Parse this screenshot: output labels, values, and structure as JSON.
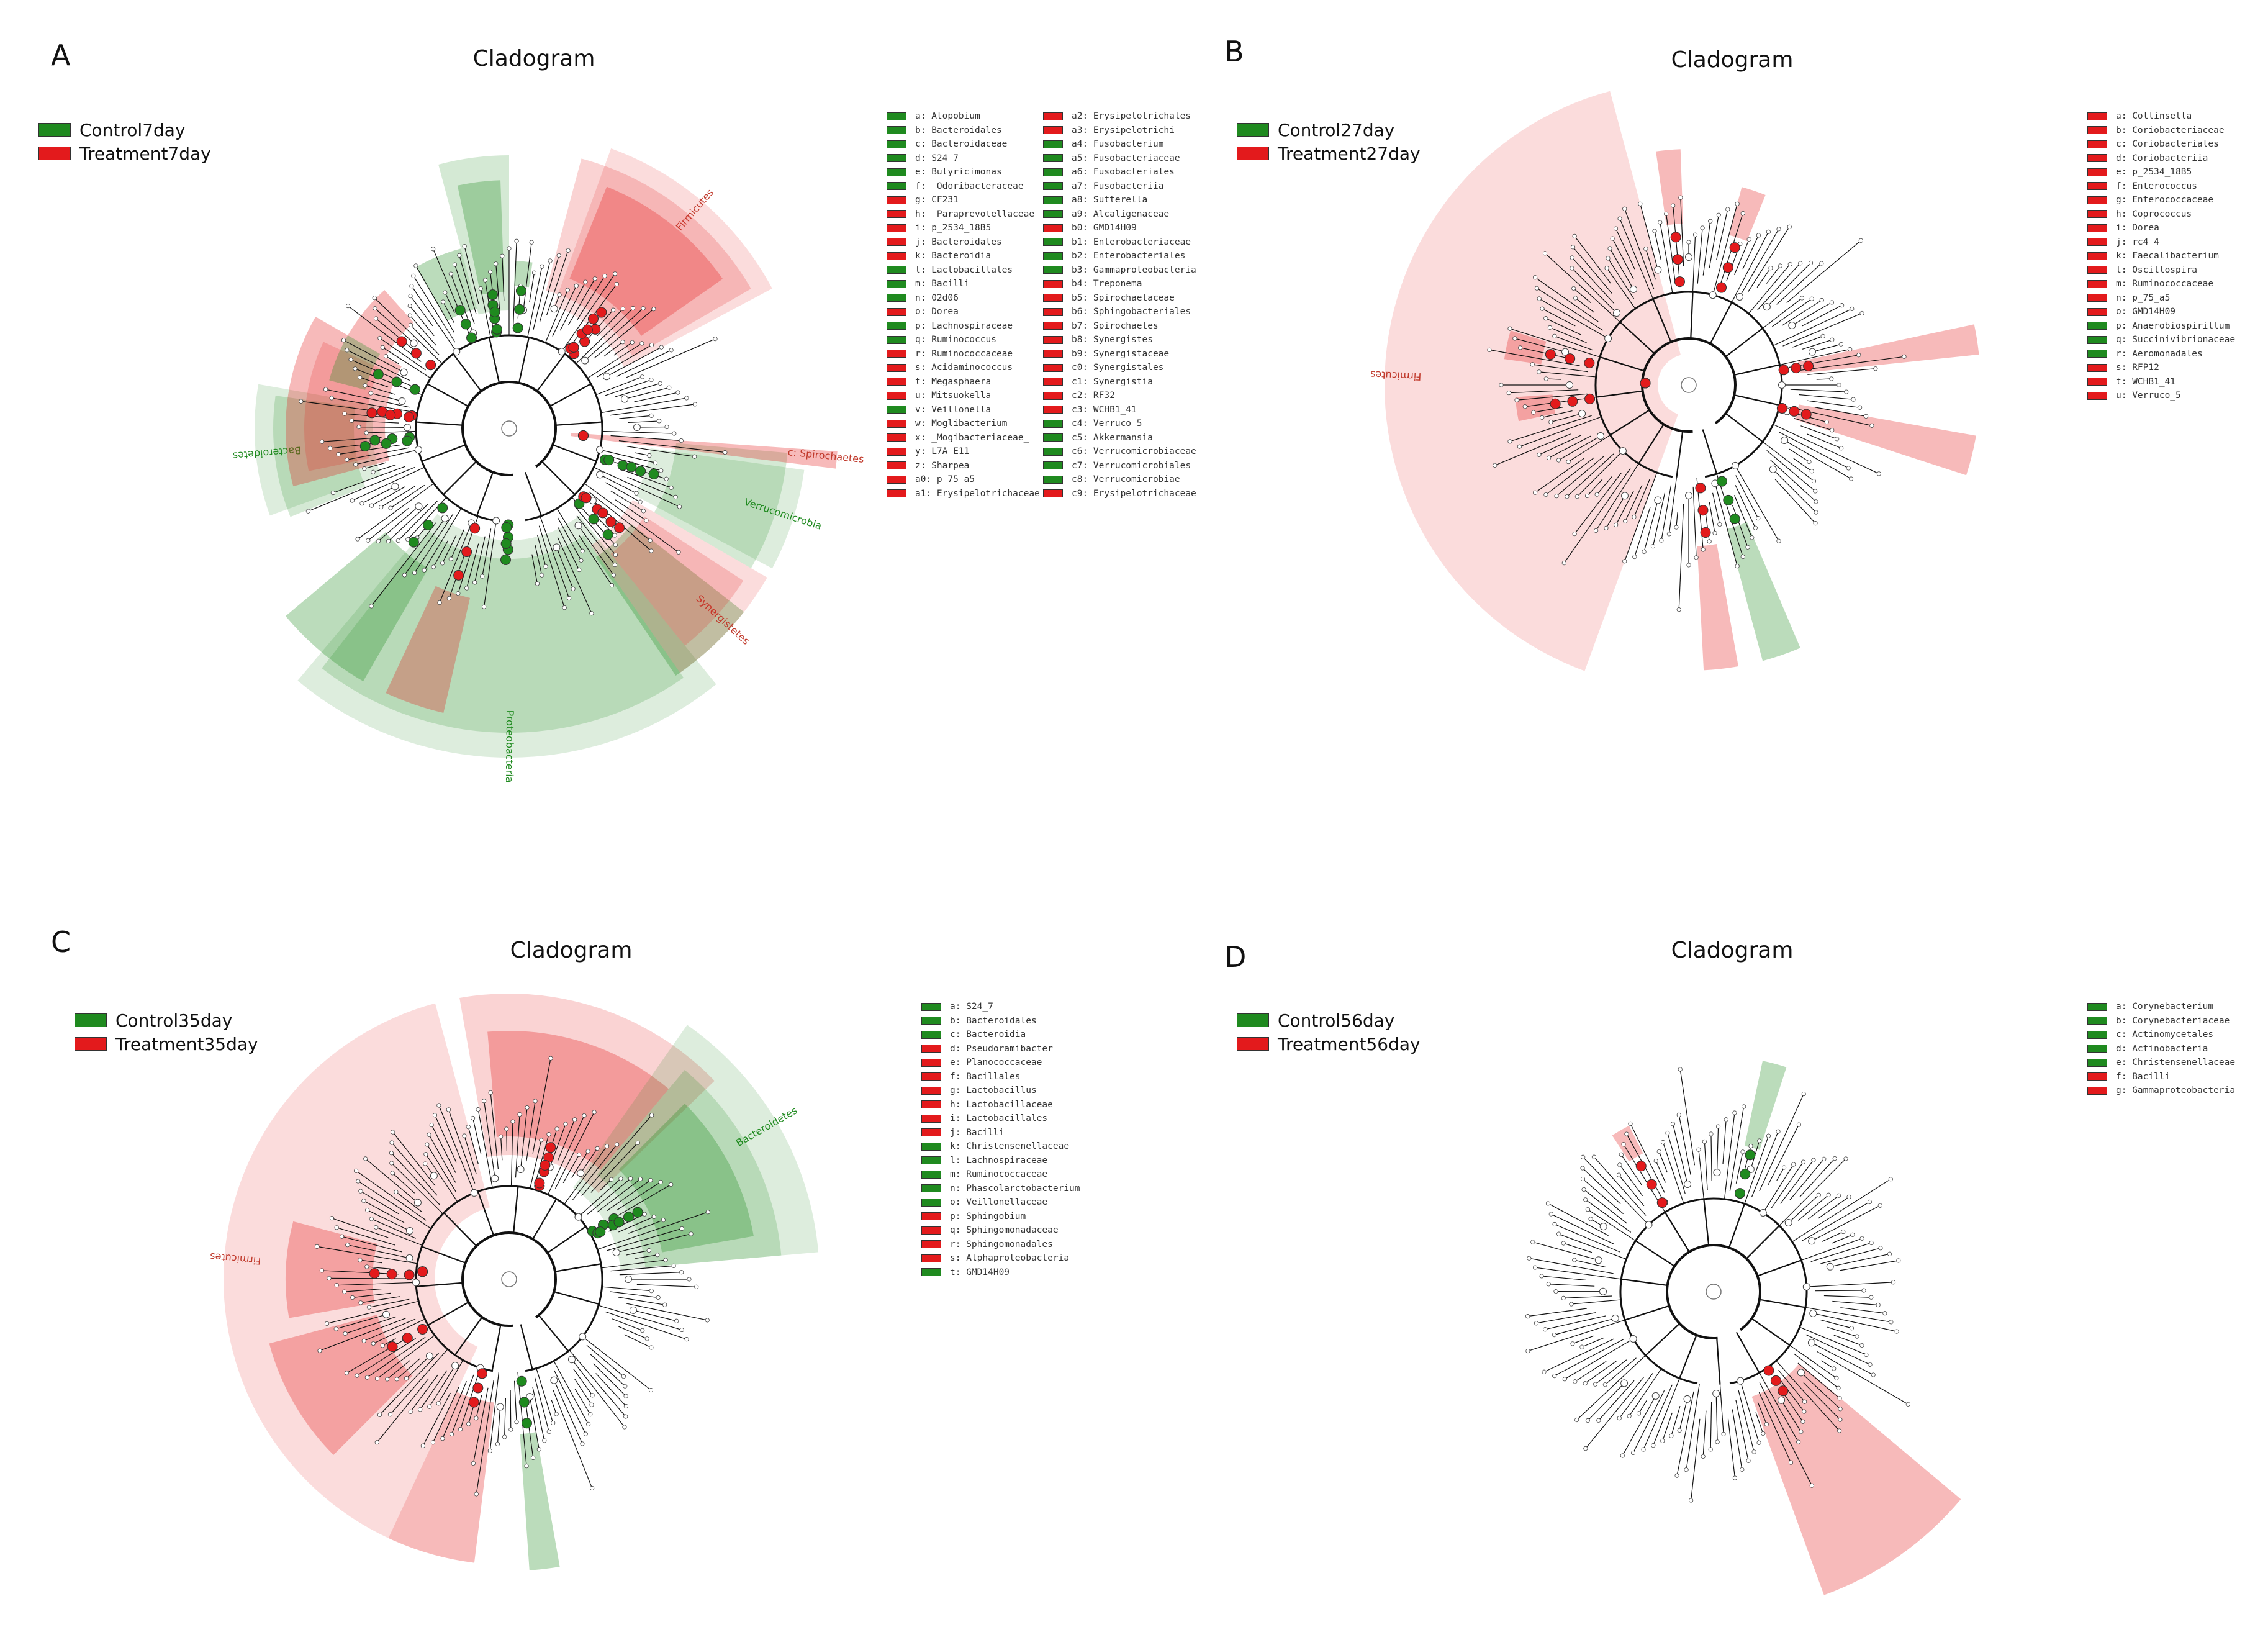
{
  "colors": {
    "control": "#1f8a1f",
    "treatment": "#e31a1c",
    "control_bg": "#a9d6a3",
    "treatment_bg": "#f4a5a5"
  },
  "panels": [
    {
      "letter": "A",
      "title": "Cladogram",
      "legend": [
        {
          "label": "Control7day",
          "group": "control"
        },
        {
          "label": "Treatment7day",
          "group": "treatment"
        }
      ],
      "sectors": [
        {
          "label": "Firmicutes",
          "group": "treatment"
        },
        {
          "label": "Proteobacteria",
          "group": "control"
        },
        {
          "label": "Bacteroidetes",
          "group": "control"
        },
        {
          "label": "Synergistetes",
          "group": "treatment"
        },
        {
          "label": "Verrucomicrobia",
          "group": "control"
        },
        {
          "label": "c: Spirochaetes",
          "group": "treatment"
        }
      ],
      "clades": [
        {
          "t": "a: Atopobium",
          "g": "control"
        },
        {
          "t": "b: Bacteroidales",
          "g": "control"
        },
        {
          "t": "c: Bacteroidaceae",
          "g": "control"
        },
        {
          "t": "d: S24_7",
          "g": "control"
        },
        {
          "t": "e: Butyricimonas",
          "g": "control"
        },
        {
          "t": "f: _Odoribacteraceae_",
          "g": "control"
        },
        {
          "t": "g: CF231",
          "g": "treatment"
        },
        {
          "t": "h: _Paraprevotellaceae_",
          "g": "treatment"
        },
        {
          "t": "i: p_2534_18B5",
          "g": "treatment"
        },
        {
          "t": "j: Bacteroidales",
          "g": "treatment"
        },
        {
          "t": "k: Bacteroidia",
          "g": "treatment"
        },
        {
          "t": "l: Lactobacillales",
          "g": "control"
        },
        {
          "t": "m: Bacilli",
          "g": "control"
        },
        {
          "t": "n: 02d06",
          "g": "control"
        },
        {
          "t": "o: Dorea",
          "g": "treatment"
        },
        {
          "t": "p: Lachnospiraceae",
          "g": "control"
        },
        {
          "t": "q: Ruminococcus",
          "g": "control"
        },
        {
          "t": "r: Ruminococcaceae",
          "g": "treatment"
        },
        {
          "t": "s: Acidaminococcus",
          "g": "treatment"
        },
        {
          "t": "t: Megasphaera",
          "g": "treatment"
        },
        {
          "t": "u: Mitsuokella",
          "g": "treatment"
        },
        {
          "t": "v: Veillonella",
          "g": "control"
        },
        {
          "t": "w: Moglibacterium",
          "g": "treatment"
        },
        {
          "t": "x: _Mogibacteriaceae_",
          "g": "treatment"
        },
        {
          "t": "y: L7A_E11",
          "g": "treatment"
        },
        {
          "t": "z: Sharpea",
          "g": "treatment"
        },
        {
          "t": "a0: p_75_a5",
          "g": "treatment"
        },
        {
          "t": "a1: Erysipelotrichaceae",
          "g": "treatment"
        },
        {
          "t": "a2: Erysipelotrichales",
          "g": "treatment"
        },
        {
          "t": "a3: Erysipelotrichi",
          "g": "treatment"
        },
        {
          "t": "a4: Fusobacterium",
          "g": "control"
        },
        {
          "t": "a5: Fusobacteriaceae",
          "g": "control"
        },
        {
          "t": "a6: Fusobacteriales",
          "g": "control"
        },
        {
          "t": "a7: Fusobacteriia",
          "g": "control"
        },
        {
          "t": "a8: Sutterella",
          "g": "control"
        },
        {
          "t": "a9: Alcaligenaceae",
          "g": "control"
        },
        {
          "t": "b0: GMD14H09",
          "g": "treatment"
        },
        {
          "t": "b1: Enterobacteriaceae",
          "g": "control"
        },
        {
          "t": "b2: Enterobacteriales",
          "g": "control"
        },
        {
          "t": "b3: Gammaproteobacteria",
          "g": "control"
        },
        {
          "t": "b4: Treponema",
          "g": "treatment"
        },
        {
          "t": "b5: Spirochaetaceae",
          "g": "treatment"
        },
        {
          "t": "b6: Sphingobacteriales",
          "g": "treatment"
        },
        {
          "t": "b7: Spirochaetes",
          "g": "treatment"
        },
        {
          "t": "b8: Synergistes",
          "g": "treatment"
        },
        {
          "t": "b9: Synergistaceae",
          "g": "treatment"
        },
        {
          "t": "c0: Synergistales",
          "g": "treatment"
        },
        {
          "t": "c1: Synergistia",
          "g": "treatment"
        },
        {
          "t": "c2: RF32",
          "g": "treatment"
        },
        {
          "t": "c3: WCHB1_41",
          "g": "treatment"
        },
        {
          "t": "c4: Verruco_5",
          "g": "control"
        },
        {
          "t": "c5: Akkermansia",
          "g": "control"
        },
        {
          "t": "c6: Verrucomicrobiaceae",
          "g": "control"
        },
        {
          "t": "c7: Verrucomicrobiales",
          "g": "control"
        },
        {
          "t": "c8: Verrucomicrobiae",
          "g": "control"
        },
        {
          "t": "c9: Erysipelotrichaceae",
          "g": "treatment"
        }
      ]
    },
    {
      "letter": "B",
      "title": "Cladogram",
      "legend": [
        {
          "label": "Control27day",
          "group": "control"
        },
        {
          "label": "Treatment27day",
          "group": "treatment"
        }
      ],
      "sectors": [
        {
          "label": "Firmicutes",
          "group": "treatment"
        }
      ],
      "clades": [
        {
          "t": "a: Collinsella",
          "g": "treatment"
        },
        {
          "t": "b: Coriobacteriaceae",
          "g": "treatment"
        },
        {
          "t": "c: Coriobacteriales",
          "g": "treatment"
        },
        {
          "t": "d: Coriobacteriia",
          "g": "treatment"
        },
        {
          "t": "e: p_2534_18B5",
          "g": "treatment"
        },
        {
          "t": "f: Enterococcus",
          "g": "treatment"
        },
        {
          "t": "g: Enterococcaceae",
          "g": "treatment"
        },
        {
          "t": "h: Coprococcus",
          "g": "treatment"
        },
        {
          "t": "i: Dorea",
          "g": "treatment"
        },
        {
          "t": "j: rc4_4",
          "g": "treatment"
        },
        {
          "t": "k: Faecalibacterium",
          "g": "treatment"
        },
        {
          "t": "l: Oscillospira",
          "g": "treatment"
        },
        {
          "t": "m: Ruminococcaceae",
          "g": "treatment"
        },
        {
          "t": "n: p_75_a5",
          "g": "treatment"
        },
        {
          "t": "o: GMD14H09",
          "g": "treatment"
        },
        {
          "t": "p: Anaerobiospirillum",
          "g": "control"
        },
        {
          "t": "q: Succinivibrionaceae",
          "g": "control"
        },
        {
          "t": "r: Aeromonadales",
          "g": "control"
        },
        {
          "t": "s: RFP12",
          "g": "treatment"
        },
        {
          "t": "t: WCHB1_41",
          "g": "treatment"
        },
        {
          "t": "u: Verruco_5",
          "g": "treatment"
        }
      ]
    },
    {
      "letter": "C",
      "title": "Cladogram",
      "legend": [
        {
          "label": "Control35day",
          "group": "control"
        },
        {
          "label": "Treatment35day",
          "group": "treatment"
        }
      ],
      "sectors": [
        {
          "label": "Firmicutes",
          "group": "treatment"
        },
        {
          "label": "Bacteroidetes",
          "group": "control"
        }
      ],
      "clades": [
        {
          "t": "a: S24_7",
          "g": "control"
        },
        {
          "t": "b: Bacteroidales",
          "g": "control"
        },
        {
          "t": "c: Bacteroidia",
          "g": "control"
        },
        {
          "t": "d: Pseudoramibacter",
          "g": "treatment"
        },
        {
          "t": "e: Planococcaceae",
          "g": "treatment"
        },
        {
          "t": "f: Bacillales",
          "g": "treatment"
        },
        {
          "t": "g: Lactobacillus",
          "g": "treatment"
        },
        {
          "t": "h: Lactobacillaceae",
          "g": "treatment"
        },
        {
          "t": "i: Lactobacillales",
          "g": "treatment"
        },
        {
          "t": "j: Bacilli",
          "g": "treatment"
        },
        {
          "t": "k: Christensenellaceae",
          "g": "control"
        },
        {
          "t": "l: Lachnospiraceae",
          "g": "control"
        },
        {
          "t": "m: Ruminococcaceae",
          "g": "control"
        },
        {
          "t": "n: Phascolarctobacterium",
          "g": "control"
        },
        {
          "t": "o: Veillonellaceae",
          "g": "control"
        },
        {
          "t": "p: Sphingobium",
          "g": "treatment"
        },
        {
          "t": "q: Sphingomonadaceae",
          "g": "treatment"
        },
        {
          "t": "r: Sphingomonadales",
          "g": "treatment"
        },
        {
          "t": "s: Alphaproteobacteria",
          "g": "treatment"
        },
        {
          "t": "t: GMD14H09",
          "g": "control"
        }
      ]
    },
    {
      "letter": "D",
      "title": "Cladogram",
      "legend": [
        {
          "label": "Control56day",
          "group": "control"
        },
        {
          "label": "Treatment56day",
          "group": "treatment"
        }
      ],
      "sectors": [],
      "clades": [
        {
          "t": "a: Corynebacterium",
          "g": "control"
        },
        {
          "t": "b: Corynebacteriaceae",
          "g": "control"
        },
        {
          "t": "c: Actinomycetales",
          "g": "control"
        },
        {
          "t": "d: Actinobacteria",
          "g": "control"
        },
        {
          "t": "e: Christensenellaceae",
          "g": "control"
        },
        {
          "t": "f: Bacilli",
          "g": "treatment"
        },
        {
          "t": "g: Gammaproteobacteria",
          "g": "treatment"
        }
      ]
    }
  ]
}
